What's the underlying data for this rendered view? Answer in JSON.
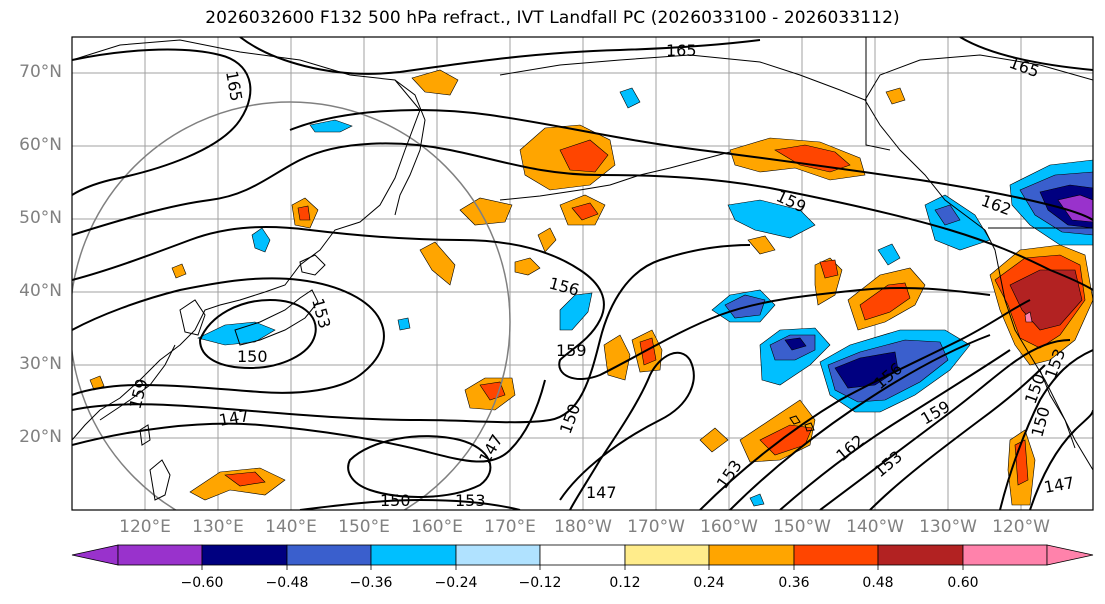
{
  "title": "2026032600 F132 500 hPa refract., IVT Landfall PC (2026033100 - 2026033112)",
  "map": {
    "lat_labels": [
      "70°N",
      "60°N",
      "50°N",
      "40°N",
      "30°N",
      "20°N"
    ],
    "lon_labels": [
      "120°E",
      "130°E",
      "140°E",
      "150°E",
      "160°E",
      "170°E",
      "180°W",
      "170°W",
      "160°W",
      "150°W",
      "140°W",
      "130°W",
      "120°W"
    ],
    "contour_labels": [
      "165",
      "165",
      "165",
      "162",
      "159",
      "159",
      "156",
      "156",
      "153",
      "153",
      "153",
      "150",
      "150",
      "150",
      "150",
      "147",
      "147",
      "147",
      "147",
      "159",
      "162",
      "153",
      "159",
      "150",
      "153"
    ],
    "colors": {
      "land_outline": "#000000",
      "grid": "#a0a0a0",
      "contour": "#000000",
      "circle": "#808080"
    }
  },
  "colorbar": {
    "ticks": [
      "−0.60",
      "−0.48",
      "−0.36",
      "−0.24",
      "−0.12",
      "0.12",
      "0.24",
      "0.36",
      "0.48",
      "0.60"
    ],
    "colors": [
      "#9932cc",
      "#000080",
      "#3a5fcd",
      "#00bfff",
      "#b0e2ff",
      "#ffffff",
      "#ffec8b",
      "#ffa500",
      "#ff4500",
      "#b22222",
      "#ff82ab"
    ]
  }
}
